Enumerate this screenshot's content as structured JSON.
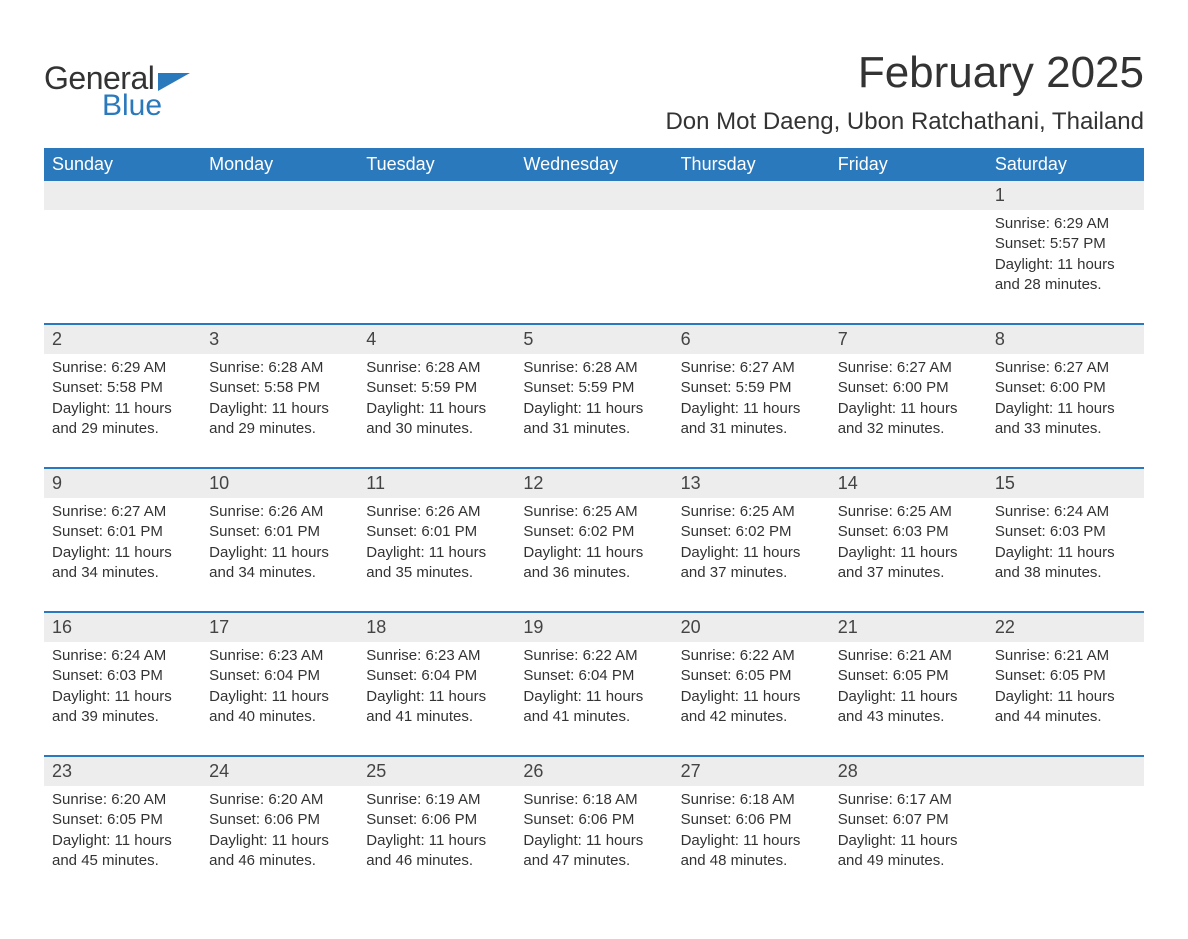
{
  "logo": {
    "general": "General",
    "blue": "Blue"
  },
  "title": "February 2025",
  "location": "Don Mot Daeng, Ubon Ratchathani, Thailand",
  "colors": {
    "header_bg": "#2a79bd",
    "header_text": "#ffffff",
    "daynum_bg": "#ededed",
    "text": "#333333",
    "page_bg": "#ffffff"
  },
  "fonts": {
    "title_size_pt": 33,
    "location_size_pt": 18,
    "weekday_size_pt": 13,
    "daynum_size_pt": 13,
    "body_size_pt": 11
  },
  "weekdays": [
    "Sunday",
    "Monday",
    "Tuesday",
    "Wednesday",
    "Thursday",
    "Friday",
    "Saturday"
  ],
  "weeks": [
    [
      null,
      null,
      null,
      null,
      null,
      null,
      {
        "n": "1",
        "sr": "Sunrise: 6:29 AM",
        "ss": "Sunset: 5:57 PM",
        "d1": "Daylight: 11 hours",
        "d2": "and 28 minutes."
      }
    ],
    [
      {
        "n": "2",
        "sr": "Sunrise: 6:29 AM",
        "ss": "Sunset: 5:58 PM",
        "d1": "Daylight: 11 hours",
        "d2": "and 29 minutes."
      },
      {
        "n": "3",
        "sr": "Sunrise: 6:28 AM",
        "ss": "Sunset: 5:58 PM",
        "d1": "Daylight: 11 hours",
        "d2": "and 29 minutes."
      },
      {
        "n": "4",
        "sr": "Sunrise: 6:28 AM",
        "ss": "Sunset: 5:59 PM",
        "d1": "Daylight: 11 hours",
        "d2": "and 30 minutes."
      },
      {
        "n": "5",
        "sr": "Sunrise: 6:28 AM",
        "ss": "Sunset: 5:59 PM",
        "d1": "Daylight: 11 hours",
        "d2": "and 31 minutes."
      },
      {
        "n": "6",
        "sr": "Sunrise: 6:27 AM",
        "ss": "Sunset: 5:59 PM",
        "d1": "Daylight: 11 hours",
        "d2": "and 31 minutes."
      },
      {
        "n": "7",
        "sr": "Sunrise: 6:27 AM",
        "ss": "Sunset: 6:00 PM",
        "d1": "Daylight: 11 hours",
        "d2": "and 32 minutes."
      },
      {
        "n": "8",
        "sr": "Sunrise: 6:27 AM",
        "ss": "Sunset: 6:00 PM",
        "d1": "Daylight: 11 hours",
        "d2": "and 33 minutes."
      }
    ],
    [
      {
        "n": "9",
        "sr": "Sunrise: 6:27 AM",
        "ss": "Sunset: 6:01 PM",
        "d1": "Daylight: 11 hours",
        "d2": "and 34 minutes."
      },
      {
        "n": "10",
        "sr": "Sunrise: 6:26 AM",
        "ss": "Sunset: 6:01 PM",
        "d1": "Daylight: 11 hours",
        "d2": "and 34 minutes."
      },
      {
        "n": "11",
        "sr": "Sunrise: 6:26 AM",
        "ss": "Sunset: 6:01 PM",
        "d1": "Daylight: 11 hours",
        "d2": "and 35 minutes."
      },
      {
        "n": "12",
        "sr": "Sunrise: 6:25 AM",
        "ss": "Sunset: 6:02 PM",
        "d1": "Daylight: 11 hours",
        "d2": "and 36 minutes."
      },
      {
        "n": "13",
        "sr": "Sunrise: 6:25 AM",
        "ss": "Sunset: 6:02 PM",
        "d1": "Daylight: 11 hours",
        "d2": "and 37 minutes."
      },
      {
        "n": "14",
        "sr": "Sunrise: 6:25 AM",
        "ss": "Sunset: 6:03 PM",
        "d1": "Daylight: 11 hours",
        "d2": "and 37 minutes."
      },
      {
        "n": "15",
        "sr": "Sunrise: 6:24 AM",
        "ss": "Sunset: 6:03 PM",
        "d1": "Daylight: 11 hours",
        "d2": "and 38 minutes."
      }
    ],
    [
      {
        "n": "16",
        "sr": "Sunrise: 6:24 AM",
        "ss": "Sunset: 6:03 PM",
        "d1": "Daylight: 11 hours",
        "d2": "and 39 minutes."
      },
      {
        "n": "17",
        "sr": "Sunrise: 6:23 AM",
        "ss": "Sunset: 6:04 PM",
        "d1": "Daylight: 11 hours",
        "d2": "and 40 minutes."
      },
      {
        "n": "18",
        "sr": "Sunrise: 6:23 AM",
        "ss": "Sunset: 6:04 PM",
        "d1": "Daylight: 11 hours",
        "d2": "and 41 minutes."
      },
      {
        "n": "19",
        "sr": "Sunrise: 6:22 AM",
        "ss": "Sunset: 6:04 PM",
        "d1": "Daylight: 11 hours",
        "d2": "and 41 minutes."
      },
      {
        "n": "20",
        "sr": "Sunrise: 6:22 AM",
        "ss": "Sunset: 6:05 PM",
        "d1": "Daylight: 11 hours",
        "d2": "and 42 minutes."
      },
      {
        "n": "21",
        "sr": "Sunrise: 6:21 AM",
        "ss": "Sunset: 6:05 PM",
        "d1": "Daylight: 11 hours",
        "d2": "and 43 minutes."
      },
      {
        "n": "22",
        "sr": "Sunrise: 6:21 AM",
        "ss": "Sunset: 6:05 PM",
        "d1": "Daylight: 11 hours",
        "d2": "and 44 minutes."
      }
    ],
    [
      {
        "n": "23",
        "sr": "Sunrise: 6:20 AM",
        "ss": "Sunset: 6:05 PM",
        "d1": "Daylight: 11 hours",
        "d2": "and 45 minutes."
      },
      {
        "n": "24",
        "sr": "Sunrise: 6:20 AM",
        "ss": "Sunset: 6:06 PM",
        "d1": "Daylight: 11 hours",
        "d2": "and 46 minutes."
      },
      {
        "n": "25",
        "sr": "Sunrise: 6:19 AM",
        "ss": "Sunset: 6:06 PM",
        "d1": "Daylight: 11 hours",
        "d2": "and 46 minutes."
      },
      {
        "n": "26",
        "sr": "Sunrise: 6:18 AM",
        "ss": "Sunset: 6:06 PM",
        "d1": "Daylight: 11 hours",
        "d2": "and 47 minutes."
      },
      {
        "n": "27",
        "sr": "Sunrise: 6:18 AM",
        "ss": "Sunset: 6:06 PM",
        "d1": "Daylight: 11 hours",
        "d2": "and 48 minutes."
      },
      {
        "n": "28",
        "sr": "Sunrise: 6:17 AM",
        "ss": "Sunset: 6:07 PM",
        "d1": "Daylight: 11 hours",
        "d2": "and 49 minutes."
      },
      null
    ]
  ]
}
